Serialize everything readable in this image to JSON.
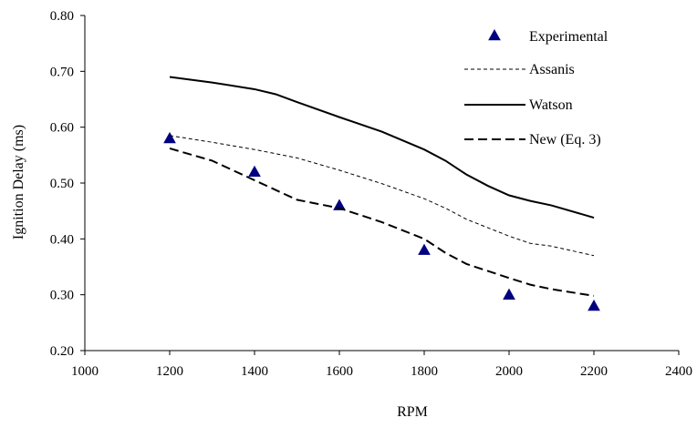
{
  "chart_data": {
    "type": "line",
    "title": "",
    "xlabel": "RPM",
    "ylabel": "Ignition Delay (ms)",
    "xlim": [
      1000,
      2400
    ],
    "ylim": [
      0.2,
      0.8
    ],
    "x_ticks": [
      "1000",
      "1200",
      "1400",
      "1600",
      "1800",
      "2000",
      "2200",
      "2400"
    ],
    "y_ticks": [
      "0.20",
      "0.30",
      "0.40",
      "0.50",
      "0.60",
      "0.70",
      "0.80"
    ],
    "grid": false,
    "legend_position": "top-right",
    "series": [
      {
        "name": "Experimental",
        "style": "marker-triangle",
        "color": "#000080",
        "x": [
          1200,
          1400,
          1600,
          1800,
          2000,
          2200
        ],
        "y": [
          0.58,
          0.52,
          0.46,
          0.38,
          0.3,
          0.28
        ]
      },
      {
        "name": "Assanis",
        "style": "thin-dashed",
        "color": "#000000",
        "x": [
          1200,
          1300,
          1400,
          1500,
          1600,
          1700,
          1800,
          1850,
          1900,
          2000,
          2050,
          2100,
          2200
        ],
        "y": [
          0.585,
          0.573,
          0.56,
          0.545,
          0.523,
          0.499,
          0.472,
          0.455,
          0.435,
          0.405,
          0.392,
          0.387,
          0.37
        ]
      },
      {
        "name": "Watson",
        "style": "solid",
        "color": "#000000",
        "x": [
          1200,
          1300,
          1400,
          1450,
          1500,
          1600,
          1700,
          1800,
          1850,
          1900,
          1950,
          2000,
          2050,
          2100,
          2200
        ],
        "y": [
          0.69,
          0.68,
          0.668,
          0.659,
          0.645,
          0.618,
          0.592,
          0.56,
          0.54,
          0.515,
          0.495,
          0.478,
          0.468,
          0.46,
          0.438
        ]
      },
      {
        "name": "New (Eq. 3)",
        "style": "thick-dashed",
        "color": "#000000",
        "x": [
          1200,
          1300,
          1400,
          1500,
          1600,
          1700,
          1800,
          1850,
          1900,
          2000,
          2050,
          2100,
          2200
        ],
        "y": [
          0.562,
          0.54,
          0.505,
          0.47,
          0.455,
          0.43,
          0.4,
          0.375,
          0.355,
          0.33,
          0.318,
          0.31,
          0.298
        ]
      }
    ]
  }
}
